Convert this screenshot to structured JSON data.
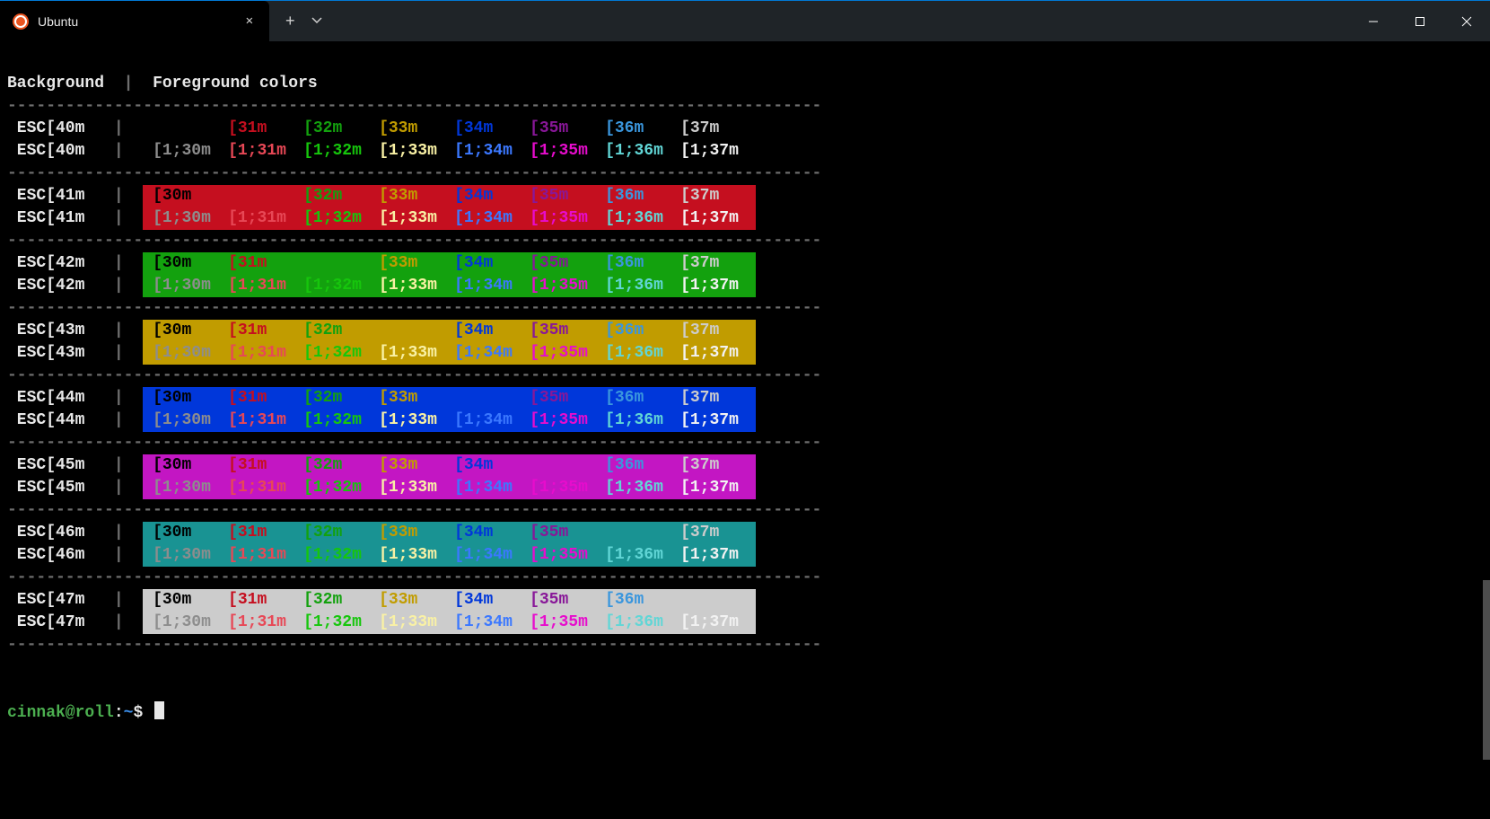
{
  "window": {
    "tab_title": "Ubuntu",
    "tab_icon": "ubuntu-logo"
  },
  "colors": {
    "normal": {
      "30": "#000000",
      "31": "#c50f1f",
      "32": "#13a10e",
      "33": "#c19c00",
      "34": "#0037da",
      "35": "#881798",
      "36": "#3a96dd",
      "37": "#cccccc"
    },
    "bright": {
      "30": "#8d8d8d",
      "31": "#e74856",
      "32": "#16c60c",
      "33": "#f9f1a5",
      "34": "#3b78ff",
      "35": "#e70ccd",
      "36": "#61d6d6",
      "37": "#f2f2f2"
    },
    "backgrounds": {
      "40": "#000000",
      "41": "#c50f1f",
      "42": "#13a10e",
      "43": "#c19c00",
      "44": "#0037da",
      "45": "#c316c3",
      "46": "#199393",
      "47": "#cccccc"
    }
  },
  "header": {
    "background_label": "Background",
    "separator": "|",
    "foreground_label": "Foreground colors"
  },
  "dashes": "------------------------------------------------------------------------------------",
  "backgrounds": [
    "40",
    "41",
    "42",
    "43",
    "44",
    "45",
    "46",
    "47"
  ],
  "fg_codes": [
    "30",
    "31",
    "32",
    "33",
    "34",
    "35",
    "36",
    "37"
  ],
  "row_label_prefix": "ESC[",
  "row_label_suffix": "m",
  "normal_cell_prefix": "[",
  "normal_cell_suffix": "m",
  "bright_cell_prefix": "[1;",
  "bright_cell_suffix": "m",
  "prompt": {
    "user": "cinnak@roll",
    "colon": ":",
    "path": "~",
    "dollar": "$"
  }
}
